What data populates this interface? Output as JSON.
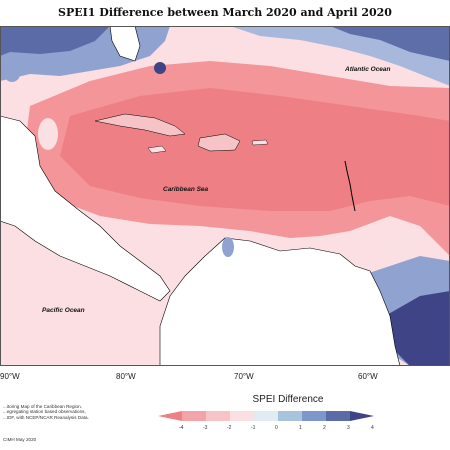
{
  "title": "SPEI1 Difference between March 2020 and April 2020",
  "map": {
    "labels": {
      "atlantic": "Atlantic Ocean",
      "caribbean": "Caribbean Sea",
      "pacific": "Pacific Ocean"
    },
    "longitude_ticks": [
      "90°W",
      "80°W",
      "70°W",
      "60°W"
    ]
  },
  "legend": {
    "title": "SPEI Difference",
    "colors": [
      "#ee7f84",
      "#f3a4a8",
      "#f6c3c6",
      "#fae0e2",
      "#e0ecf2",
      "#a7c4dc",
      "#7d97cb",
      "#5a6ba8",
      "#3e4486"
    ],
    "tick_labels": [
      "-4",
      "-3",
      "-2",
      "-1",
      "0",
      "1",
      "2",
      "3",
      "4"
    ]
  },
  "credits": {
    "line1": "...itoring Map of the Caribbean Region.",
    "line2": "...egregating station based observations,",
    "line3": "...IDF, with NCEP/NCAR Reanalysis Data.",
    "copyright": "CIMH May 2020"
  }
}
